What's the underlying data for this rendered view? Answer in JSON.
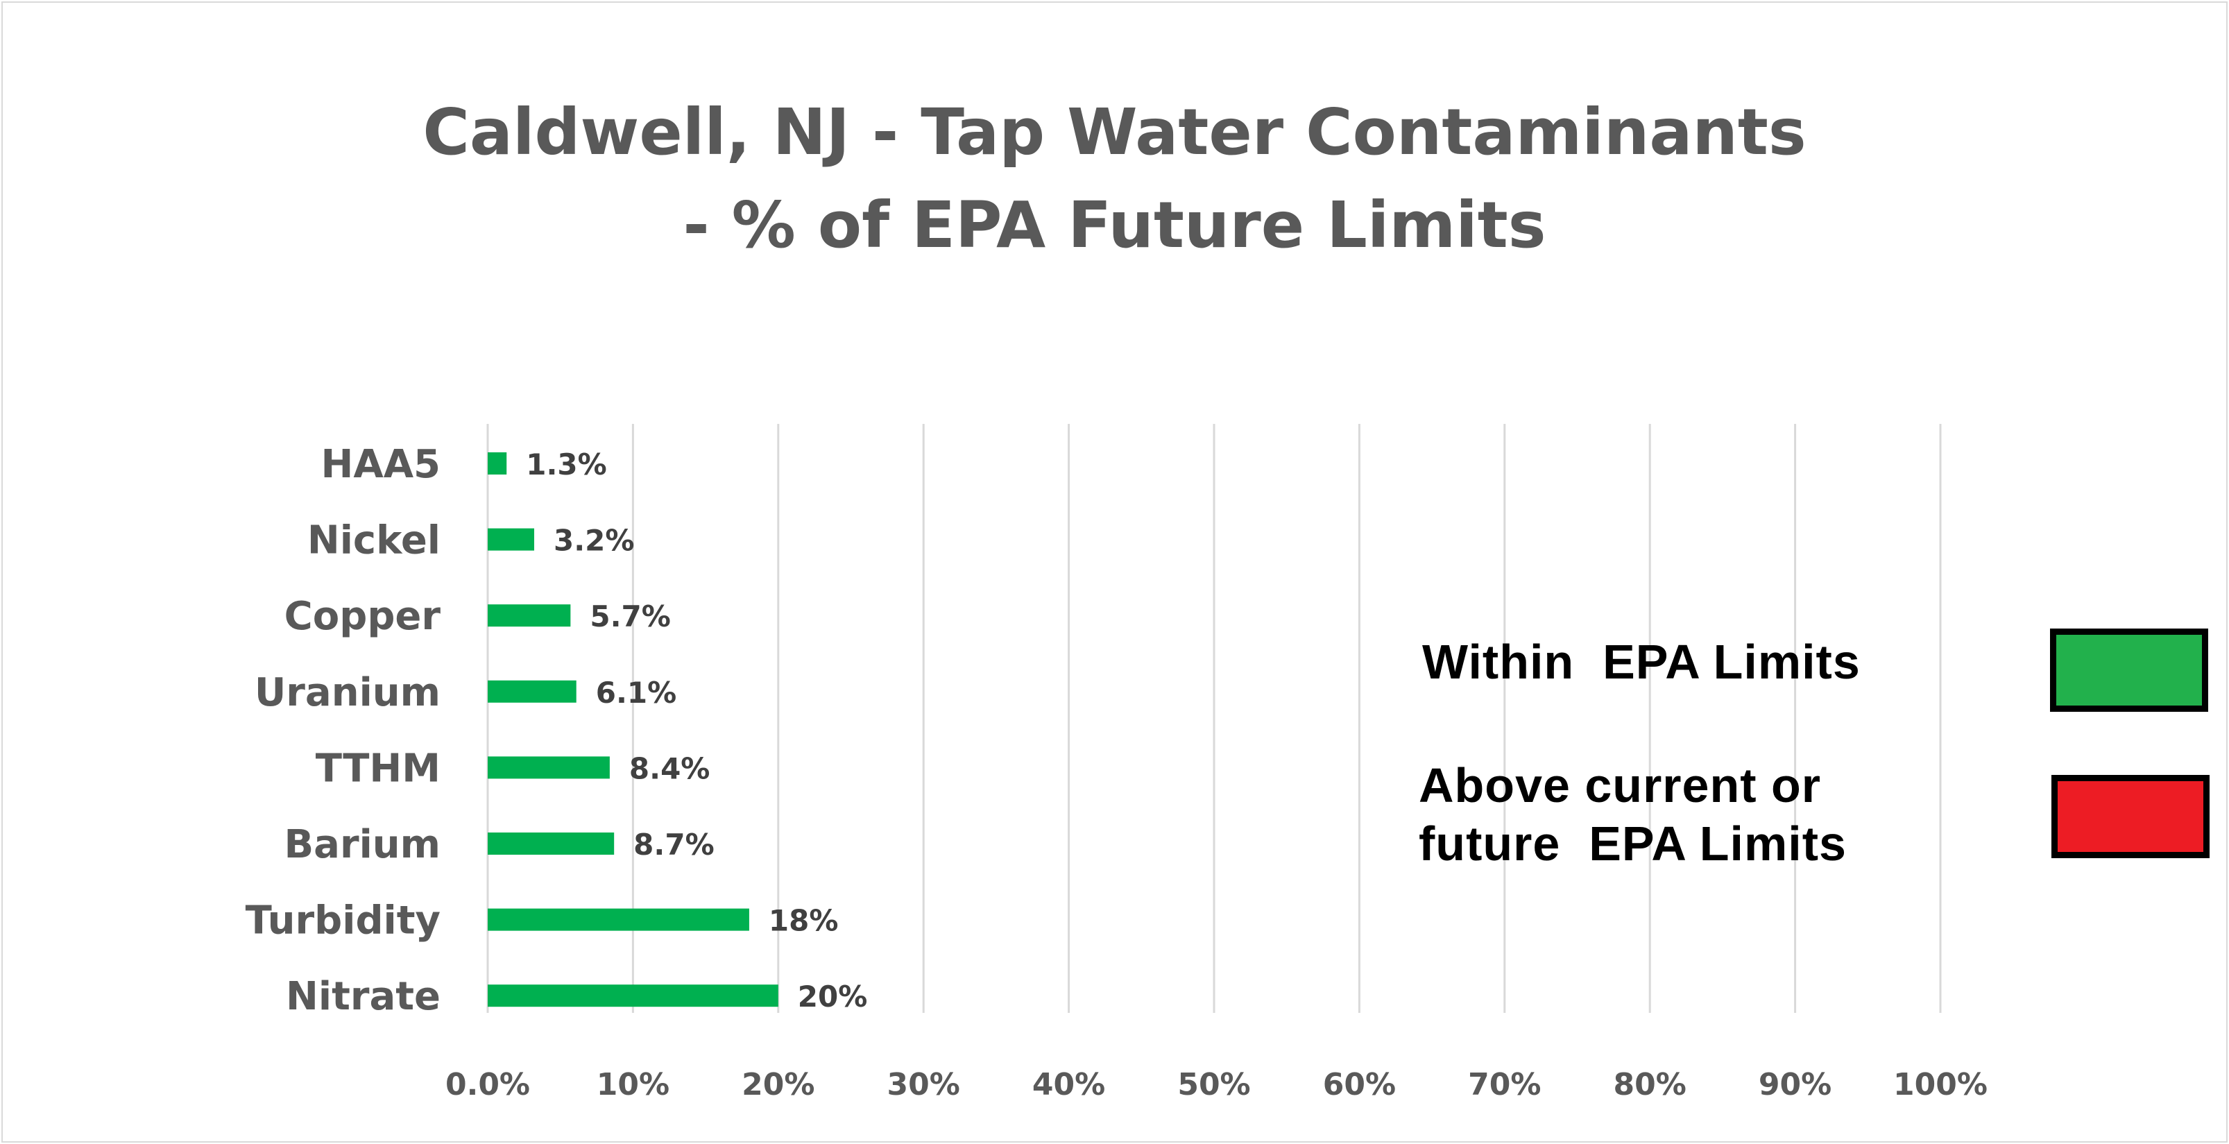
{
  "chart_data": {
    "type": "bar",
    "orientation": "horizontal",
    "title": [
      "Caldwell, NJ - Tap Water Contaminants",
      "- % of EPA Future Limits"
    ],
    "categories": [
      "HAA5",
      "Nickel",
      "Copper",
      "Uranium",
      "TTHM",
      "Barium",
      "Turbidity",
      "Nitrate"
    ],
    "values": [
      1.3,
      3.2,
      5.7,
      6.1,
      8.4,
      8.7,
      18,
      20
    ],
    "data_labels": [
      "1.3%",
      "3.2%",
      "5.7%",
      "6.1%",
      "8.4%",
      "8.7%",
      "18%",
      "20%"
    ],
    "xlim": [
      0,
      100
    ],
    "xticks": [
      0,
      10,
      20,
      30,
      40,
      50,
      60,
      70,
      80,
      90,
      100
    ],
    "xtick_labels": [
      "0.0%",
      "10%",
      "20%",
      "30%",
      "40%",
      "50%",
      "60%",
      "70%",
      "80%",
      "90%",
      "100%"
    ],
    "xlabel": "",
    "ylabel": "",
    "grid": "vertical",
    "bar_color": "#00b050",
    "legend": {
      "placement": "right",
      "items": [
        {
          "label": "Within EPA Limits",
          "lines": [
            "Within  EPA Limits"
          ],
          "color": "#22b14c"
        },
        {
          "label": "Above current or future EPA Limits",
          "lines": [
            "Above current or",
            "future  EPA Limits"
          ],
          "color": "#ed1c24"
        }
      ]
    }
  }
}
